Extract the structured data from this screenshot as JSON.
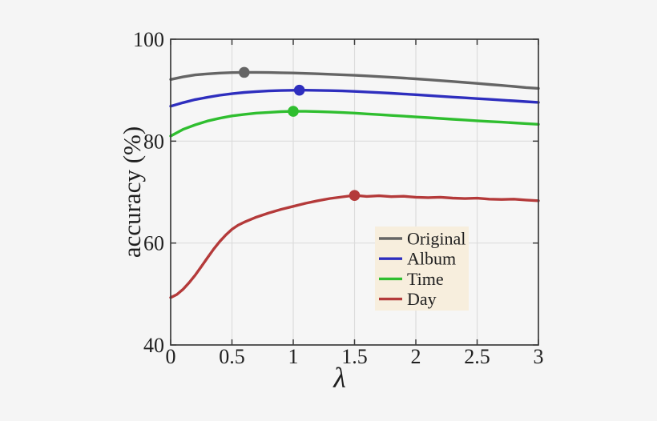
{
  "colors": {
    "background": "#f5f5f5",
    "plot_background": "#f6f6f6",
    "axis": "#3c3c3c",
    "grid": "#dcdcdc",
    "text": "#1f1f1f",
    "legend_background": "#f7eedd"
  },
  "chart_data": {
    "type": "line",
    "title": "",
    "xlabel": "λ",
    "ylabel": "accuracy (%)",
    "xlim": [
      0,
      3
    ],
    "ylim": [
      40,
      100
    ],
    "xticks": [
      0,
      0.5,
      1,
      1.5,
      2,
      2.5,
      3
    ],
    "xtick_labels": [
      "0",
      "0.5",
      "1",
      "1.5",
      "2",
      "2.5",
      "3"
    ],
    "yticks": [
      40,
      60,
      80,
      100
    ],
    "ytick_labels": [
      "40",
      "60",
      "80",
      "100"
    ],
    "grid": true,
    "legend_position": "lower-right-inside",
    "series": [
      {
        "name": "Original",
        "color": "#656565",
        "marker": [
          0.6,
          93.5
        ],
        "points": [
          [
            0,
            92.1
          ],
          [
            0.1,
            92.6
          ],
          [
            0.2,
            93.0
          ],
          [
            0.3,
            93.2
          ],
          [
            0.4,
            93.35
          ],
          [
            0.5,
            93.45
          ],
          [
            0.6,
            93.5
          ],
          [
            0.7,
            93.5
          ],
          [
            0.8,
            93.47
          ],
          [
            0.9,
            93.42
          ],
          [
            1,
            93.37
          ],
          [
            1.1,
            93.3
          ],
          [
            1.2,
            93.22
          ],
          [
            1.3,
            93.12
          ],
          [
            1.4,
            93.02
          ],
          [
            1.5,
            92.92
          ],
          [
            1.6,
            92.8
          ],
          [
            1.7,
            92.67
          ],
          [
            1.8,
            92.53
          ],
          [
            1.9,
            92.38
          ],
          [
            2,
            92.22
          ],
          [
            2.1,
            92.05
          ],
          [
            2.2,
            91.88
          ],
          [
            2.3,
            91.7
          ],
          [
            2.4,
            91.52
          ],
          [
            2.5,
            91.33
          ],
          [
            2.6,
            91.13
          ],
          [
            2.7,
            90.93
          ],
          [
            2.8,
            90.73
          ],
          [
            2.9,
            90.52
          ],
          [
            3,
            90.35
          ]
        ]
      },
      {
        "name": "Album",
        "color": "#2e2ebe",
        "marker": [
          1.05,
          90.0
        ],
        "points": [
          [
            0,
            86.85
          ],
          [
            0.1,
            87.55
          ],
          [
            0.2,
            88.15
          ],
          [
            0.3,
            88.6
          ],
          [
            0.4,
            89.0
          ],
          [
            0.5,
            89.3
          ],
          [
            0.6,
            89.55
          ],
          [
            0.7,
            89.72
          ],
          [
            0.8,
            89.85
          ],
          [
            0.9,
            89.93
          ],
          [
            1,
            89.98
          ],
          [
            1.1,
            90.0
          ],
          [
            1.2,
            89.97
          ],
          [
            1.3,
            89.92
          ],
          [
            1.4,
            89.85
          ],
          [
            1.5,
            89.76
          ],
          [
            1.6,
            89.65
          ],
          [
            1.7,
            89.53
          ],
          [
            1.8,
            89.4
          ],
          [
            1.9,
            89.26
          ],
          [
            2,
            89.11
          ],
          [
            2.1,
            88.96
          ],
          [
            2.2,
            88.8
          ],
          [
            2.3,
            88.65
          ],
          [
            2.4,
            88.5
          ],
          [
            2.5,
            88.35
          ],
          [
            2.6,
            88.2
          ],
          [
            2.7,
            88.05
          ],
          [
            2.8,
            87.9
          ],
          [
            2.9,
            87.75
          ],
          [
            3,
            87.6
          ]
        ]
      },
      {
        "name": "Time",
        "color": "#2fbe2f",
        "marker": [
          1.0,
          85.85
        ],
        "points": [
          [
            0,
            81.0
          ],
          [
            0.1,
            82.3
          ],
          [
            0.2,
            83.2
          ],
          [
            0.3,
            83.95
          ],
          [
            0.4,
            84.5
          ],
          [
            0.5,
            84.95
          ],
          [
            0.6,
            85.25
          ],
          [
            0.7,
            85.5
          ],
          [
            0.8,
            85.65
          ],
          [
            0.9,
            85.78
          ],
          [
            1,
            85.85
          ],
          [
            1.1,
            85.85
          ],
          [
            1.2,
            85.8
          ],
          [
            1.3,
            85.72
          ],
          [
            1.4,
            85.62
          ],
          [
            1.5,
            85.5
          ],
          [
            1.6,
            85.35
          ],
          [
            1.7,
            85.2
          ],
          [
            1.8,
            85.05
          ],
          [
            1.9,
            84.9
          ],
          [
            2,
            84.75
          ],
          [
            2.1,
            84.6
          ],
          [
            2.2,
            84.45
          ],
          [
            2.3,
            84.3
          ],
          [
            2.4,
            84.15
          ],
          [
            2.5,
            84.0
          ],
          [
            2.6,
            83.86
          ],
          [
            2.7,
            83.72
          ],
          [
            2.8,
            83.58
          ],
          [
            2.9,
            83.44
          ],
          [
            3,
            83.3
          ]
        ]
      },
      {
        "name": "Day",
        "color": "#b43a3a",
        "marker": [
          1.5,
          69.35
        ],
        "points": [
          [
            0,
            49.3
          ],
          [
            0.05,
            49.9
          ],
          [
            0.1,
            50.9
          ],
          [
            0.15,
            52.2
          ],
          [
            0.2,
            53.7
          ],
          [
            0.25,
            55.4
          ],
          [
            0.3,
            57.1
          ],
          [
            0.35,
            58.8
          ],
          [
            0.4,
            60.3
          ],
          [
            0.45,
            61.6
          ],
          [
            0.5,
            62.7
          ],
          [
            0.55,
            63.5
          ],
          [
            0.6,
            64.1
          ],
          [
            0.7,
            65.1
          ],
          [
            0.8,
            65.9
          ],
          [
            0.9,
            66.6
          ],
          [
            1,
            67.2
          ],
          [
            1.1,
            67.8
          ],
          [
            1.2,
            68.3
          ],
          [
            1.3,
            68.75
          ],
          [
            1.4,
            69.05
          ],
          [
            1.5,
            69.35
          ],
          [
            1.6,
            69.15
          ],
          [
            1.7,
            69.28
          ],
          [
            1.8,
            69.1
          ],
          [
            1.9,
            69.18
          ],
          [
            2,
            69.0
          ],
          [
            2.1,
            68.92
          ],
          [
            2.2,
            69.0
          ],
          [
            2.3,
            68.82
          ],
          [
            2.4,
            68.72
          ],
          [
            2.5,
            68.8
          ],
          [
            2.6,
            68.62
          ],
          [
            2.7,
            68.55
          ],
          [
            2.8,
            68.62
          ],
          [
            2.9,
            68.45
          ],
          [
            3,
            68.3
          ]
        ]
      }
    ],
    "legend": {
      "entries": [
        "Original",
        "Album",
        "Time",
        "Day"
      ]
    }
  }
}
